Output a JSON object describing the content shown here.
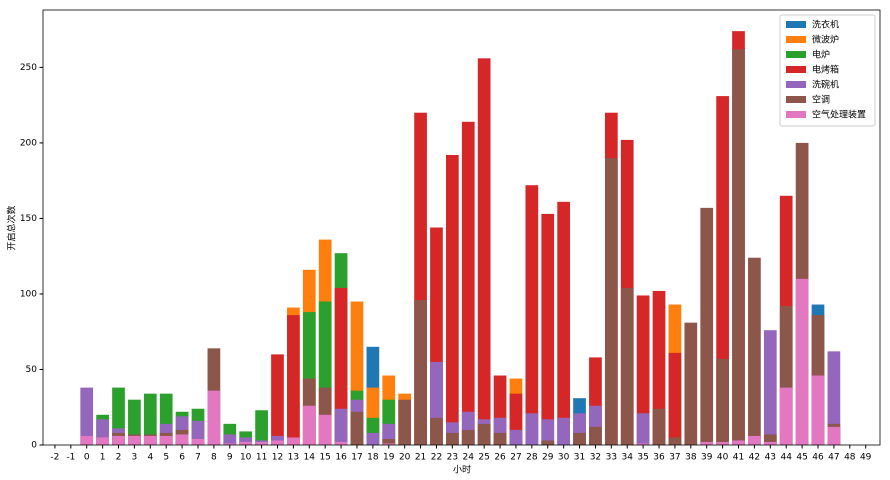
{
  "chart_data": {
    "type": "bar",
    "xlabel": "小时",
    "ylabel": "开启总次数",
    "x": [
      0,
      1,
      2,
      3,
      4,
      5,
      6,
      7,
      8,
      9,
      10,
      11,
      12,
      13,
      14,
      15,
      16,
      17,
      18,
      19,
      20,
      21,
      22,
      23,
      24,
      25,
      26,
      27,
      28,
      29,
      30,
      31,
      32,
      33,
      34,
      35,
      36,
      37,
      38,
      39,
      40,
      41,
      42,
      43,
      44,
      45,
      46,
      47
    ],
    "xlim": [
      -2.75,
      49.9
    ],
    "xticks": [
      -2,
      -1,
      0,
      1,
      2,
      3,
      4,
      5,
      6,
      7,
      8,
      9,
      10,
      11,
      12,
      13,
      14,
      15,
      16,
      17,
      18,
      19,
      20,
      21,
      22,
      23,
      24,
      25,
      26,
      27,
      28,
      29,
      30,
      31,
      32,
      33,
      34,
      35,
      36,
      37,
      38,
      39,
      40,
      41,
      42,
      43,
      44,
      45,
      46,
      47,
      48,
      49
    ],
    "ylim": [
      0,
      288
    ],
    "yticks": [
      0,
      50,
      100,
      150,
      200,
      250
    ],
    "legend": "upper right",
    "series": [
      {
        "name": "洗衣机",
        "color": "#1f77b4",
        "values": [
          0,
          0,
          0,
          0,
          0,
          0,
          0,
          0,
          0,
          0,
          0,
          0,
          0,
          0,
          0,
          0,
          0,
          0,
          65,
          0,
          0,
          0,
          0,
          0,
          0,
          0,
          0,
          0,
          0,
          0,
          0,
          31,
          0,
          0,
          0,
          0,
          0,
          0,
          0,
          0,
          0,
          0,
          0,
          0,
          0,
          0,
          93,
          0
        ]
      },
      {
        "name": "微波炉",
        "color": "#ff7f0e",
        "values": [
          0,
          0,
          0,
          0,
          0,
          0,
          0,
          0,
          0,
          0,
          0,
          0,
          0,
          91,
          116,
          136,
          0,
          95,
          38,
          46,
          34,
          0,
          0,
          0,
          0,
          0,
          0,
          44,
          0,
          0,
          0,
          0,
          0,
          0,
          0,
          0,
          0,
          93,
          0,
          0,
          0,
          0,
          0,
          0,
          0,
          0,
          0,
          0
        ]
      },
      {
        "name": "电炉",
        "color": "#2ca02c",
        "values": [
          0,
          20,
          38,
          30,
          34,
          34,
          22,
          24,
          0,
          14,
          9,
          23,
          0,
          0,
          88,
          95,
          127,
          36,
          18,
          30,
          0,
          0,
          0,
          0,
          0,
          0,
          0,
          0,
          0,
          0,
          0,
          0,
          0,
          0,
          0,
          0,
          0,
          0,
          0,
          0,
          0,
          0,
          0,
          0,
          0,
          0,
          0,
          0
        ]
      },
      {
        "name": "电烤箱",
        "color": "#d62728",
        "values": [
          0,
          0,
          0,
          0,
          0,
          0,
          0,
          0,
          0,
          0,
          0,
          0,
          60,
          86,
          0,
          0,
          104,
          0,
          0,
          0,
          0,
          220,
          144,
          192,
          214,
          256,
          46,
          34,
          172,
          153,
          161,
          0,
          58,
          220,
          202,
          99,
          102,
          61,
          0,
          0,
          231,
          274,
          0,
          0,
          165,
          0,
          0,
          0
        ]
      },
      {
        "name": "洗碗机",
        "color": "#9467bd",
        "values": [
          38,
          17,
          11,
          0,
          0,
          14,
          19,
          16,
          0,
          7,
          5,
          3,
          6,
          0,
          0,
          0,
          24,
          30,
          8,
          14,
          0,
          0,
          55,
          15,
          22,
          17,
          18,
          10,
          21,
          17,
          18,
          21,
          26,
          0,
          0,
          21,
          0,
          0,
          0,
          0,
          0,
          0,
          0,
          76,
          0,
          0,
          0,
          62
        ]
      },
      {
        "name": "空调",
        "color": "#8c564b",
        "values": [
          0,
          0,
          8,
          7,
          7,
          8,
          10,
          0,
          64,
          0,
          0,
          0,
          0,
          0,
          44,
          38,
          0,
          22,
          0,
          4,
          30,
          96,
          18,
          8,
          10,
          14,
          8,
          0,
          0,
          3,
          0,
          8,
          12,
          190,
          104,
          0,
          24,
          5,
          81,
          157,
          57,
          262,
          124,
          7,
          92,
          200,
          86,
          14
        ]
      },
      {
        "name": "空气处理装置",
        "color": "#e377c2",
        "values": [
          6,
          5,
          6,
          6,
          6,
          6,
          7,
          4,
          36,
          1,
          2,
          2,
          3,
          5,
          26,
          20,
          2,
          0,
          0,
          1,
          0,
          0,
          0,
          0,
          0,
          0,
          0,
          0,
          0,
          0,
          0,
          0,
          0,
          0,
          0,
          1,
          0,
          0,
          0,
          2,
          2,
          3,
          6,
          2,
          38,
          110,
          46,
          12
        ]
      }
    ]
  }
}
